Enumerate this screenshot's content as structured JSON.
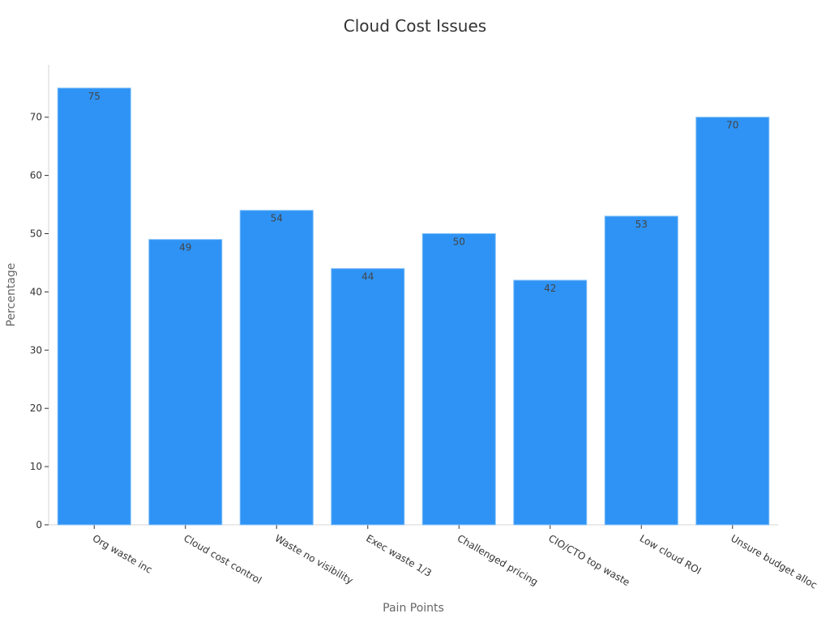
{
  "chart_data": {
    "type": "bar",
    "title": "Cloud Cost Issues",
    "xlabel": "Pain Points",
    "ylabel": "Percentage",
    "categories": [
      "Org waste inc",
      "Cloud cost control",
      "Waste no visibility",
      "Exec waste 1/3",
      "Challenged pricing",
      "CIO/CTO top waste",
      "Low cloud ROI",
      "Unsure budget alloc"
    ],
    "values": [
      75,
      49,
      54,
      44,
      50,
      42,
      53,
      70
    ],
    "ylim": [
      0,
      79
    ],
    "yticks": [
      0,
      10,
      20,
      30,
      40,
      50,
      60,
      70
    ],
    "grid": false,
    "bar_color": "#2e93f5",
    "data_labels": true
  }
}
